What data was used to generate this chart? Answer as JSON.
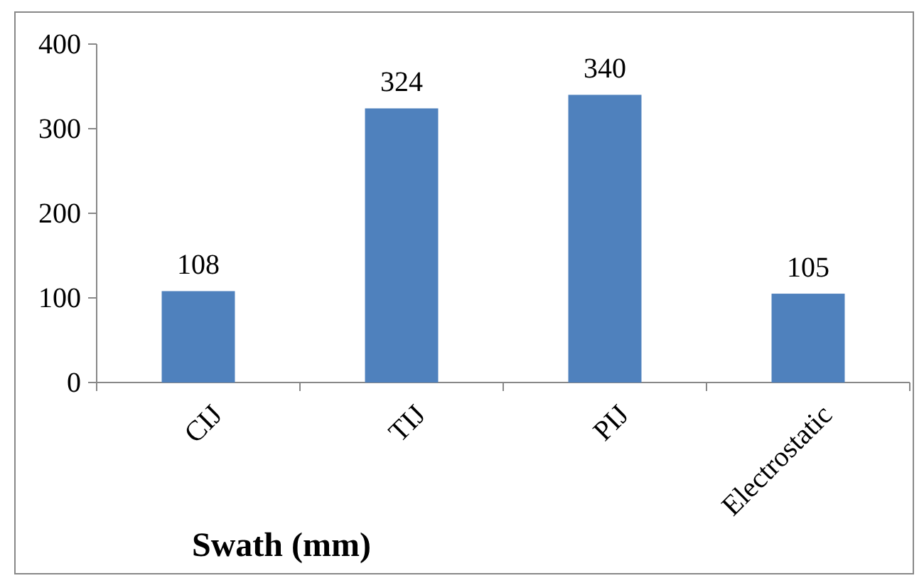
{
  "chart_data": {
    "type": "bar",
    "xlabel": "Swath (mm)",
    "categories": [
      "CIJ",
      "TIJ",
      "PIJ",
      "Electrostatic"
    ],
    "values": [
      108,
      324,
      340,
      105
    ],
    "color": "#4f81bd",
    "ylim": [
      0,
      400
    ],
    "yticks": [
      0,
      100,
      200,
      300,
      400
    ],
    "data_labels": true,
    "grid": false
  }
}
